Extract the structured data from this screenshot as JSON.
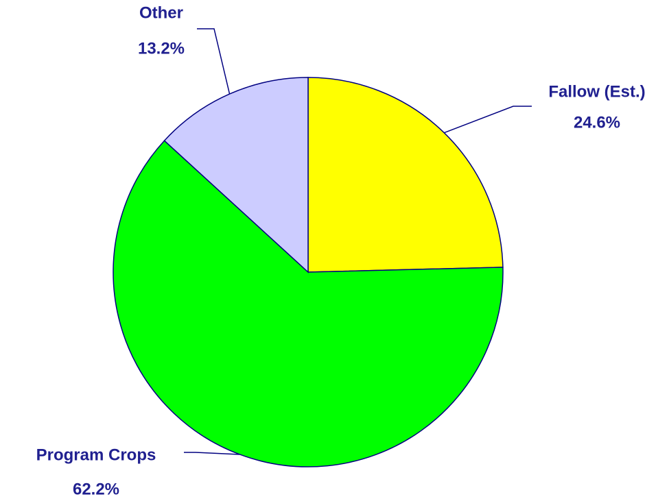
{
  "chart_data": {
    "type": "pie",
    "categories": [
      "Fallow (Est.)",
      "Program Crops",
      "Other"
    ],
    "values": [
      24.6,
      62.2,
      13.2
    ],
    "value_labels": [
      "24.6%",
      "62.2%",
      "13.2%"
    ],
    "colors": [
      "#ffff00",
      "#00ff00",
      "#ccccff"
    ]
  }
}
